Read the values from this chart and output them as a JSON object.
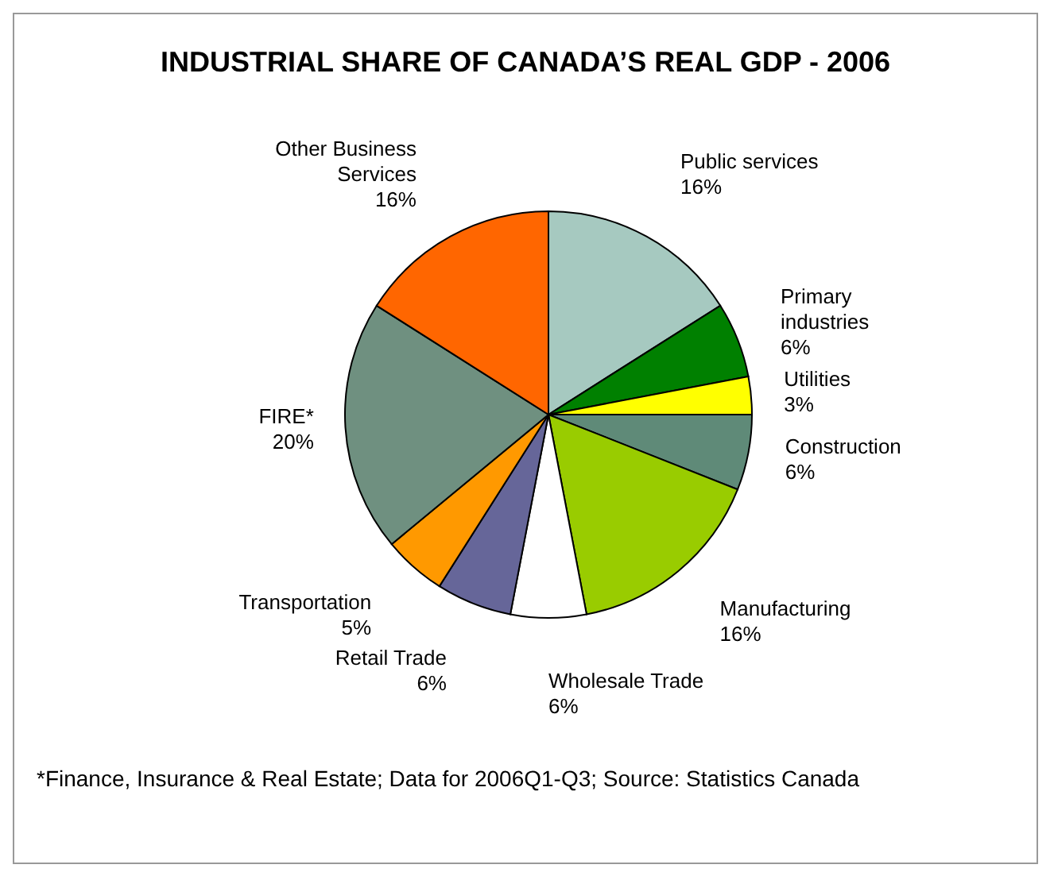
{
  "chart_data": {
    "type": "pie",
    "title": "INDUSTRIAL SHARE OF CANADA’S REAL GDP - 2006",
    "categories": [
      "Public services",
      "Primary industries",
      "Utilities",
      "Construction",
      "Manufacturing",
      "Wholesale Trade",
      "Retail Trade",
      "Transportation",
      "FIRE*",
      "Other Business Services"
    ],
    "values": [
      16,
      6,
      3,
      6,
      16,
      6,
      6,
      5,
      20,
      16
    ],
    "value_labels": [
      "16%",
      "6%",
      "3%",
      "6%",
      "16%",
      "6%",
      "6%",
      "5%",
      "20%",
      "16%"
    ],
    "colors": [
      "#a6c9c0",
      "#008000",
      "#ffff00",
      "#5f8a78",
      "#99cc00",
      "#ffffff",
      "#666699",
      "#ff9900",
      "#6f9080",
      "#ff6600"
    ],
    "legend": false,
    "annotations": [
      "*Finance, Insurance & Real Estate; Data for 2006Q1-Q3; Source:  Statistics Canada"
    ]
  }
}
